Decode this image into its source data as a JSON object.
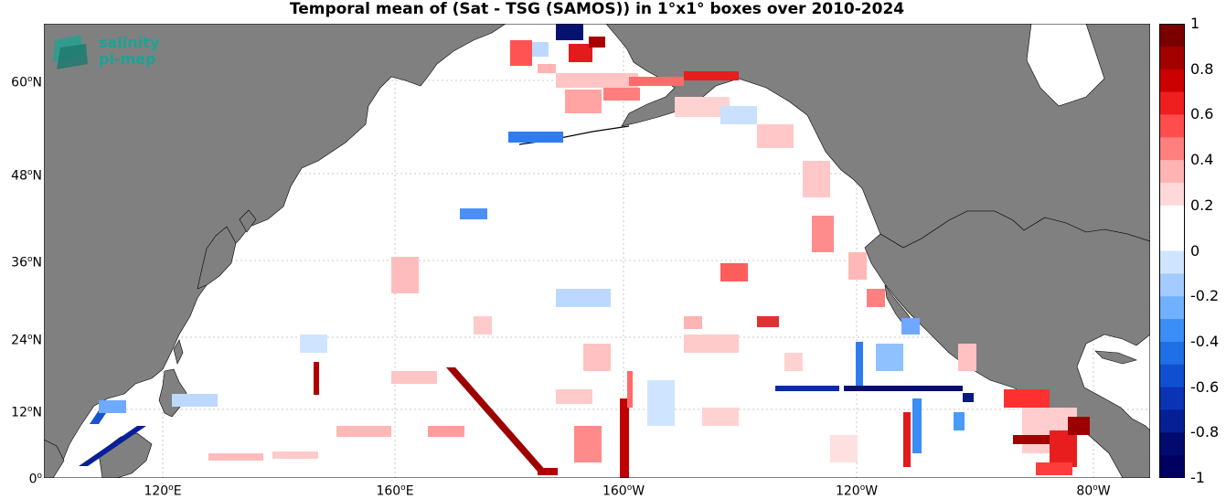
{
  "title": "Temporal mean of (Sat - TSG (SAMOS)) in 1°x1° boxes over 2010-2024",
  "logo": {
    "line1": "salinity",
    "line2": "pi-mep"
  },
  "lat_labels": [
    {
      "deg": "60",
      "hemi": "N"
    },
    {
      "deg": "48",
      "hemi": "N"
    },
    {
      "deg": "36",
      "hemi": "N"
    },
    {
      "deg": "24",
      "hemi": "N"
    },
    {
      "deg": "12",
      "hemi": "N"
    },
    {
      "deg": "0",
      "hemi": ""
    }
  ],
  "lon_labels": [
    {
      "deg": "120",
      "hemi": "E"
    },
    {
      "deg": "160",
      "hemi": "E"
    },
    {
      "deg": "160",
      "hemi": "W"
    },
    {
      "deg": "120",
      "hemi": "W"
    },
    {
      "deg": "80",
      "hemi": "W"
    }
  ],
  "colorbar": {
    "ticks": [
      "1",
      "0.8",
      "0.6",
      "0.4",
      "0.2",
      "0",
      "-0.2",
      "-0.4",
      "-0.6",
      "-0.8",
      "-1"
    ],
    "colors": [
      "#7a0000",
      "#a30000",
      "#cc0000",
      "#ef1f1f",
      "#ff4d4d",
      "#ff7f7f",
      "#ffb3b3",
      "#ffd9d9",
      "#ffffff",
      "#ffffff",
      "#cfe5ff",
      "#a3cbff",
      "#6fb0ff",
      "#3b8ef5",
      "#1f6fe6",
      "#0f4fd0",
      "#0a34b5",
      "#061f94",
      "#020a6e",
      "#000060"
    ]
  },
  "colors": {
    "land": "#808080",
    "ocean": "#ffffff",
    "grid": "#c8c8c8"
  }
}
